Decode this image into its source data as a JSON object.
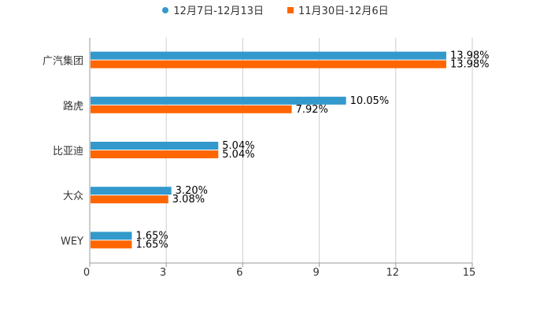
{
  "chart_data": {
    "type": "bar",
    "orientation": "horizontal",
    "categories": [
      "广汽集团",
      "路虎",
      "比亚迪",
      "大众",
      "WEY"
    ],
    "series": [
      {
        "name": "12月7日-12月13日",
        "color": "#3399cc",
        "values": [
          13.98,
          10.05,
          5.04,
          3.2,
          1.65
        ],
        "labels": [
          "13.98%",
          "10.05%",
          "5.04%",
          "3.20%",
          "1.65%"
        ]
      },
      {
        "name": "11月30日-12月6日",
        "color": "#ff6600",
        "values": [
          13.98,
          7.92,
          5.04,
          3.08,
          1.65
        ],
        "labels": [
          "13.98%",
          "7.92%",
          "5.04%",
          "3.08%",
          "1.65%"
        ]
      }
    ],
    "xlim": [
      0,
      15
    ],
    "xticks": [
      "0",
      "3",
      "6",
      "9",
      "12",
      "15"
    ],
    "grid": true,
    "legend_position": "top-center"
  }
}
